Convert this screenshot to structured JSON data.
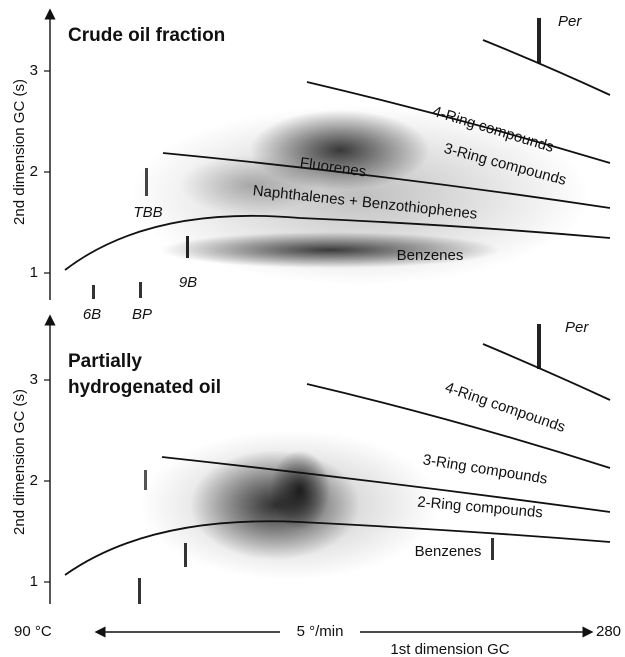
{
  "panels": [
    {
      "title": "Crude oil fraction",
      "y_label": "2nd dimension GC (s)",
      "yticks": [
        1,
        2,
        3
      ],
      "regions": [
        "4-Ring compounds",
        "3-Ring compounds",
        "Fluorenes",
        "Naphthalenes + Benzothiophenes",
        "Benzenes"
      ],
      "peaks": [
        "Per",
        "TBB",
        "9B",
        "6B",
        "BP"
      ]
    },
    {
      "title": [
        "Partially",
        "hydrogenated oil"
      ],
      "y_label": "2nd dimension GC (s)",
      "yticks": [
        1,
        2,
        3
      ],
      "regions": [
        "4-Ring compounds",
        "3-Ring compounds",
        "2-Ring compounds",
        "Benzenes"
      ],
      "peaks": [
        "Per"
      ]
    }
  ],
  "x_axis": {
    "start": "90 °C",
    "rate": "5 °/min",
    "end": "280 °C",
    "label": "1st dimension GC"
  }
}
